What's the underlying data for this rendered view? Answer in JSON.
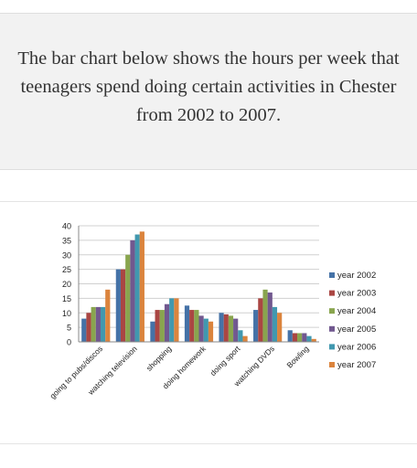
{
  "prompt": {
    "text": "The bar chart below shows the hours per week that teenagers spend doing certain activities in Chester from 2002 to 2007."
  },
  "chart_data": {
    "type": "bar",
    "title": "",
    "xlabel": "",
    "ylabel": "",
    "ylim": [
      0,
      40
    ],
    "yticks": [
      0,
      5,
      10,
      15,
      20,
      25,
      30,
      35,
      40
    ],
    "grid": true,
    "legend_position": "right",
    "categories": [
      "going to pubs/discos",
      "watching television",
      "shopping",
      "doing homework",
      "doing sport",
      "watching DVDs",
      "Bowling"
    ],
    "series": [
      {
        "name": "year 2002",
        "color": "#4572a7",
        "values": [
          8,
          25,
          7,
          12.5,
          10,
          11,
          4
        ]
      },
      {
        "name": "year 2003",
        "color": "#aa4643",
        "values": [
          10,
          25,
          11,
          11,
          9.5,
          15,
          3
        ]
      },
      {
        "name": "year 2004",
        "color": "#89a54e",
        "values": [
          12,
          30,
          11,
          11,
          9,
          18,
          3
        ]
      },
      {
        "name": "year 2005",
        "color": "#71588f",
        "values": [
          12,
          35,
          13,
          9,
          8,
          17,
          3
        ]
      },
      {
        "name": "year 2006",
        "color": "#4198af",
        "values": [
          12,
          37,
          15,
          8,
          4,
          12,
          2
        ]
      },
      {
        "name": "year 2007",
        "color": "#db843d",
        "values": [
          18,
          38,
          15,
          7,
          2,
          10,
          1
        ]
      }
    ]
  }
}
